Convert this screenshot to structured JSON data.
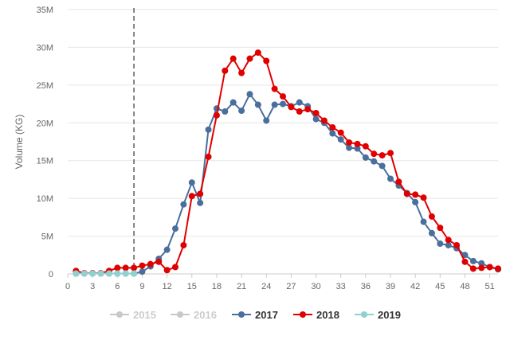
{
  "chart_data": {
    "type": "line",
    "title": "",
    "xlabel": "",
    "ylabel": "Volume (KG)",
    "xlim": [
      0,
      52
    ],
    "ylim": [
      0,
      35000000
    ],
    "x_ticks": [
      0,
      3,
      6,
      9,
      12,
      15,
      18,
      21,
      24,
      27,
      30,
      33,
      36,
      39,
      42,
      45,
      48,
      51
    ],
    "y_ticks": [
      {
        "value": 0,
        "label": "0"
      },
      {
        "value": 5000000,
        "label": "5M"
      },
      {
        "value": 10000000,
        "label": "10M"
      },
      {
        "value": 15000000,
        "label": "15M"
      },
      {
        "value": 20000000,
        "label": "20M"
      },
      {
        "value": 25000000,
        "label": "25M"
      },
      {
        "value": 30000000,
        "label": "30M"
      },
      {
        "value": 35000000,
        "label": "35M"
      }
    ],
    "grid": true,
    "reference_line_x": 8,
    "legend_position": "bottom",
    "series": [
      {
        "name": "2015",
        "color": "#c8c8c8",
        "visible": false,
        "x": [],
        "values": []
      },
      {
        "name": "2016",
        "color": "#c8c8c8",
        "visible": false,
        "x": [],
        "values": []
      },
      {
        "name": "2017",
        "color": "#4a6f9c",
        "visible": true,
        "x": [
          1,
          2,
          3,
          4,
          5,
          6,
          7,
          8,
          9,
          10,
          11,
          12,
          13,
          14,
          15,
          16,
          17,
          18,
          19,
          20,
          21,
          22,
          23,
          24,
          25,
          26,
          27,
          28,
          29,
          30,
          31,
          32,
          33,
          34,
          35,
          36,
          37,
          38,
          39,
          40,
          41,
          42,
          43,
          44,
          45,
          46,
          47,
          48,
          49,
          50,
          51,
          52
        ],
        "values": [
          50000,
          50000,
          50000,
          50000,
          50000,
          50000,
          50000,
          50000,
          300000,
          1000000,
          2000000,
          3200000,
          6000000,
          9200000,
          12100000,
          9400000,
          19100000,
          21900000,
          21500000,
          22700000,
          21600000,
          23800000,
          22400000,
          20300000,
          22400000,
          22500000,
          22200000,
          22700000,
          22200000,
          20500000,
          20000000,
          18600000,
          17800000,
          16700000,
          16600000,
          15400000,
          14900000,
          14300000,
          12600000,
          11700000,
          10700000,
          9500000,
          6900000,
          5400000,
          4000000,
          3800000,
          3400000,
          2500000,
          1700000,
          1400000,
          900000,
          600000
        ]
      },
      {
        "name": "2018",
        "color": "#e00000",
        "visible": true,
        "x": [
          1,
          2,
          3,
          4,
          5,
          6,
          7,
          8,
          9,
          10,
          11,
          12,
          13,
          14,
          15,
          16,
          17,
          18,
          19,
          20,
          21,
          22,
          23,
          24,
          25,
          26,
          27,
          28,
          29,
          30,
          31,
          32,
          33,
          34,
          35,
          36,
          37,
          38,
          39,
          40,
          41,
          42,
          43,
          44,
          45,
          46,
          47,
          48,
          49,
          50,
          51,
          52
        ],
        "values": [
          400000,
          100000,
          100000,
          100000,
          400000,
          800000,
          800000,
          800000,
          1100000,
          1300000,
          1600000,
          500000,
          900000,
          3800000,
          10300000,
          10600000,
          15500000,
          21000000,
          26900000,
          28500000,
          26600000,
          28500000,
          29300000,
          28200000,
          24500000,
          23500000,
          22100000,
          21500000,
          21800000,
          21300000,
          20300000,
          19400000,
          18700000,
          17400000,
          17200000,
          16900000,
          15900000,
          15700000,
          16000000,
          12200000,
          10600000,
          10500000,
          10100000,
          7600000,
          6100000,
          4500000,
          3800000,
          1600000,
          700000,
          800000,
          900000,
          700000
        ]
      },
      {
        "name": "2019",
        "color": "#8fd0d0",
        "visible": true,
        "x": [
          1,
          2,
          3,
          4,
          5,
          6,
          7,
          8
        ],
        "values": [
          50000,
          50000,
          50000,
          50000,
          50000,
          50000,
          50000,
          50000
        ]
      }
    ]
  }
}
